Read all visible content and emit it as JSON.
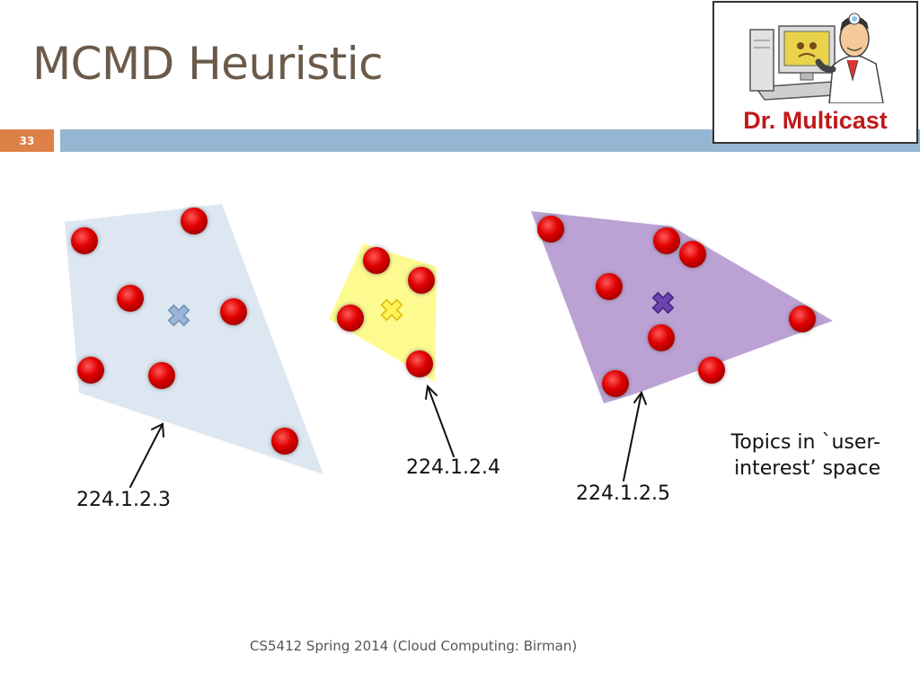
{
  "slide": {
    "title": "MCMD Heuristic",
    "number": "33",
    "footer": "CS5412 Spring 2014 (Cloud Computing: Birman)"
  },
  "logo": {
    "caption": "Dr. Multicast"
  },
  "diagram": {
    "groups": [
      {
        "label": "224.1.2.3",
        "region_color": "#dde7f1",
        "marker_color": "#7f9fc4"
      },
      {
        "label": "224.1.2.4",
        "region_color": "#fdfb8f",
        "marker_color": "#f2d418"
      },
      {
        "label": "224.1.2.5",
        "region_color": "#bca2d4",
        "marker_color": "#5b3a9c"
      }
    ],
    "caption_lines": [
      "Topics in `user-",
      "interest’ space"
    ],
    "dot_color": "#e00000"
  }
}
